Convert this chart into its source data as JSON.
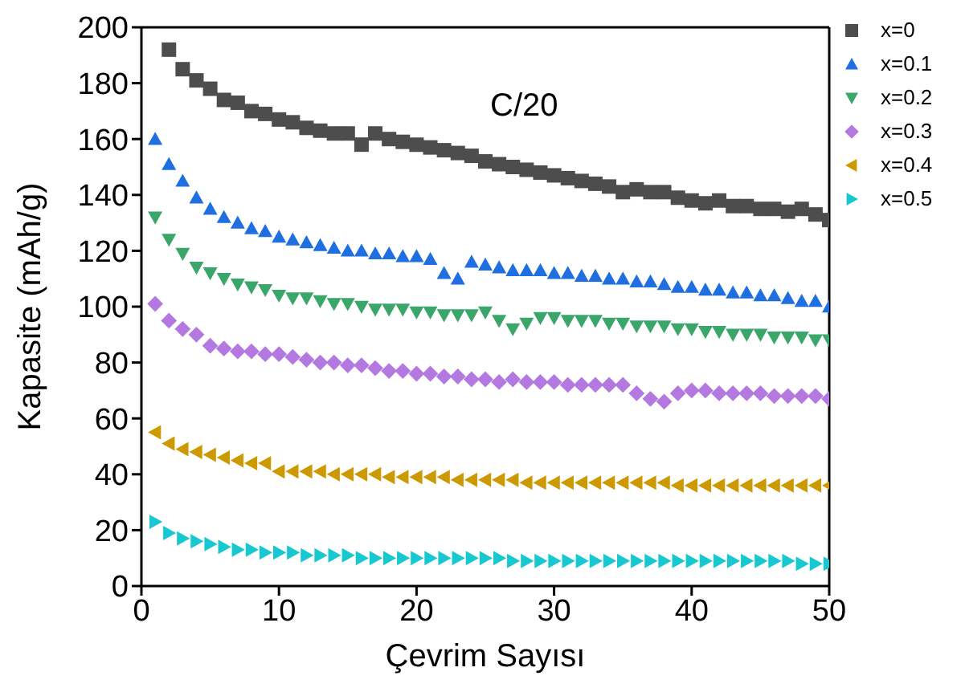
{
  "chart_data": {
    "type": "scatter",
    "xlabel": "Çevrim Sayısı",
    "ylabel": "Kapasite (mAh/g)",
    "annotations": [
      "C/20"
    ],
    "xlim": [
      0,
      50
    ],
    "xticks": [
      0,
      10,
      20,
      30,
      40,
      50
    ],
    "ylim": [
      0,
      200
    ],
    "yticks": [
      0,
      20,
      40,
      60,
      80,
      100,
      120,
      140,
      160,
      180,
      200
    ],
    "legend": "top right",
    "x": [
      1,
      2,
      3,
      4,
      5,
      6,
      7,
      8,
      9,
      10,
      11,
      12,
      13,
      14,
      15,
      16,
      17,
      18,
      19,
      20,
      21,
      22,
      23,
      24,
      25,
      26,
      27,
      28,
      29,
      30,
      31,
      32,
      33,
      34,
      35,
      36,
      37,
      38,
      39,
      40,
      41,
      42,
      43,
      44,
      45,
      46,
      47,
      48,
      49,
      50
    ],
    "series": [
      {
        "name": "x=0",
        "color": "#4d4d4d",
        "marker": "square",
        "values": [
          null,
          192,
          185,
          181,
          178,
          174,
          173,
          170,
          169,
          167,
          166,
          164,
          163,
          162,
          162,
          158,
          162,
          160,
          159,
          158,
          157,
          156,
          155,
          154,
          152,
          151,
          150,
          149,
          148,
          147,
          146,
          145,
          144,
          143,
          141,
          142,
          141,
          141,
          139,
          138,
          137,
          138,
          136,
          136,
          135,
          135,
          134,
          135,
          133,
          131
        ]
      },
      {
        "name": "x=0.1",
        "color": "#1f6fe0",
        "marker": "triangle",
        "values": [
          160,
          151,
          145,
          139,
          135,
          132,
          130,
          128,
          127,
          125,
          124,
          123,
          122,
          121,
          120,
          120,
          119,
          119,
          118,
          118,
          117,
          112,
          110,
          116,
          115,
          114,
          113,
          113,
          113,
          112,
          112,
          111,
          111,
          110,
          110,
          109,
          109,
          108,
          107,
          107,
          106,
          106,
          105,
          105,
          104,
          104,
          103,
          102,
          102,
          100
        ]
      },
      {
        "name": "x=0.2",
        "color": "#3aa66a",
        "marker": "triangle-down",
        "values": [
          132,
          124,
          119,
          114,
          112,
          110,
          108,
          107,
          106,
          104,
          103,
          103,
          102,
          101,
          101,
          100,
          99,
          99,
          99,
          98,
          98,
          97,
          97,
          97,
          98,
          95,
          92,
          94,
          96,
          96,
          95,
          95,
          95,
          94,
          94,
          93,
          93,
          93,
          92,
          92,
          91,
          91,
          90,
          90,
          90,
          89,
          89,
          89,
          88,
          88
        ]
      },
      {
        "name": "x=0.3",
        "color": "#b479e0",
        "marker": "diamond",
        "values": [
          101,
          95,
          92,
          90,
          86,
          85,
          84,
          84,
          83,
          83,
          82,
          81,
          80,
          80,
          79,
          79,
          78,
          77,
          77,
          76,
          76,
          75,
          75,
          74,
          74,
          73,
          74,
          73,
          73,
          73,
          72,
          72,
          72,
          72,
          72,
          69,
          67,
          66,
          69,
          70,
          70,
          69,
          69,
          69,
          69,
          68,
          68,
          68,
          68,
          67
        ]
      },
      {
        "name": "x=0.4",
        "color": "#cc9900",
        "marker": "triangle-left",
        "values": [
          55,
          51,
          49,
          48,
          47,
          46,
          45,
          44,
          44,
          41,
          41,
          41,
          41,
          40,
          40,
          40,
          40,
          39,
          39,
          39,
          39,
          39,
          38,
          38,
          38,
          38,
          38,
          37,
          37,
          37,
          37,
          37,
          37,
          37,
          37,
          37,
          37,
          37,
          36,
          36,
          36,
          36,
          36,
          36,
          36,
          36,
          36,
          36,
          36,
          36
        ]
      },
      {
        "name": "x=0.5",
        "color": "#17c8d0",
        "marker": "triangle-right",
        "values": [
          23,
          19,
          17,
          16,
          15,
          14,
          13,
          13,
          12,
          12,
          12,
          11,
          11,
          11,
          11,
          10,
          10,
          10,
          10,
          10,
          10,
          10,
          10,
          10,
          10,
          10,
          9,
          9,
          9,
          9,
          9,
          9,
          9,
          9,
          9,
          9,
          9,
          9,
          9,
          9,
          9,
          9,
          9,
          9,
          9,
          9,
          9,
          8,
          8,
          8
        ]
      }
    ]
  }
}
